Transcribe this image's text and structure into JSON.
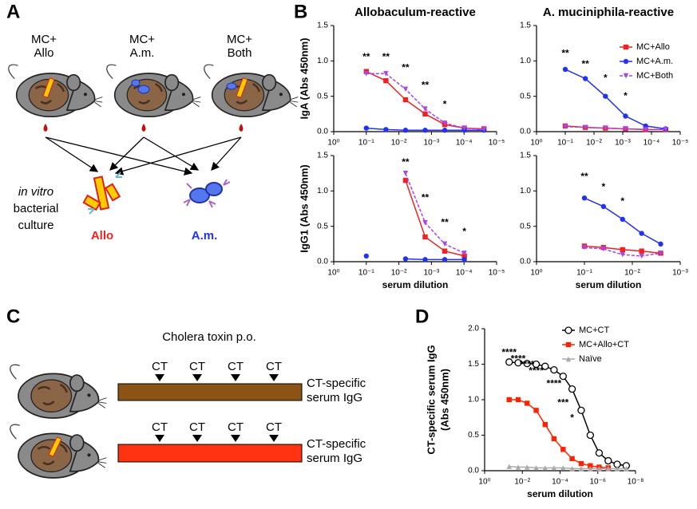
{
  "figure": {
    "A": {
      "label": "A",
      "groups": [
        {
          "line1": "MC+",
          "line2": "Allo"
        },
        {
          "line1": "MC+",
          "line2": "A.m."
        },
        {
          "line1": "MC+",
          "line2": "Both"
        }
      ],
      "culture": [
        "in vitro",
        "bacterial",
        "culture"
      ],
      "targets": [
        "Allo",
        "A.m."
      ]
    },
    "B": {
      "label": "B"
    },
    "C": {
      "label": "C",
      "title": "Cholera toxin p.o.",
      "rows": [
        {
          "doses": [
            "CT",
            "CT",
            "CT",
            "CT"
          ],
          "readout": [
            "CT-specific",
            "serum IgG"
          ]
        },
        {
          "doses": [
            "CT",
            "CT",
            "CT",
            "CT"
          ],
          "readout": [
            "CT-specific",
            "serum IgG"
          ]
        }
      ]
    },
    "D": {
      "label": "D"
    }
  },
  "chart_data": [
    {
      "type": "line",
      "title": "Allobaculum-reactive",
      "ylabel": "IgA (Abs 450nm)",
      "log_x": true,
      "xlim": [
        1,
        1e-05
      ],
      "ylim": [
        0,
        1.5
      ],
      "xticks": [
        {
          "value": 1,
          "label": "10⁰"
        },
        {
          "value": 0.1,
          "label": "10⁻¹"
        },
        {
          "value": 0.01,
          "label": "10⁻²"
        },
        {
          "value": 0.001,
          "label": "10⁻³"
        },
        {
          "value": 0.0001,
          "label": "10⁻⁴"
        },
        {
          "value": 1e-05,
          "label": "10⁻⁵"
        }
      ],
      "yticks": [
        {
          "value": 0,
          "label": "0.0"
        },
        0.5,
        {
          "value": 1,
          "label": "1.0"
        },
        1.5
      ],
      "x": [
        0.1,
        0.025,
        0.00625,
        0.00156,
        0.00039,
        9.77e-05,
        2.44e-05
      ],
      "series": [
        {
          "name": "MC+Allo",
          "color": "#ee2222",
          "marker": "square",
          "values": [
            0.85,
            0.72,
            0.45,
            0.25,
            0.1,
            0.05,
            0.04
          ]
        },
        {
          "name": "MC+A.m.",
          "color": "#2233ee",
          "marker": "circle",
          "values": [
            0.05,
            0.03,
            0.02,
            0.02,
            0.02,
            0.02,
            0.02
          ]
        },
        {
          "name": "MC+Both",
          "color": "#aa44ee",
          "marker": "triangle-down",
          "dash": true,
          "values": [
            0.82,
            0.82,
            0.6,
            0.32,
            0.12,
            0.05,
            0.03
          ]
        }
      ],
      "annotations": [
        {
          "x": 0.1,
          "y": 1.05,
          "text": "**"
        },
        {
          "x": 0.025,
          "y": 1.05,
          "text": "**"
        },
        {
          "x": 0.00625,
          "y": 0.9,
          "text": "**"
        },
        {
          "x": 0.00156,
          "y": 0.65,
          "text": "**"
        },
        {
          "x": 0.00039,
          "y": 0.38,
          "text": "*"
        }
      ]
    },
    {
      "type": "line",
      "title": "A. muciniphila-reactive",
      "log_x": true,
      "legend": "upper right",
      "xlim": [
        1,
        1e-05
      ],
      "ylim": [
        0,
        1.5
      ],
      "xticks": [
        {
          "value": 1,
          "label": "10⁰"
        },
        {
          "value": 0.1,
          "label": "10⁻¹"
        },
        {
          "value": 0.01,
          "label": "10⁻²"
        },
        {
          "value": 0.001,
          "label": "10⁻³"
        },
        {
          "value": 0.0001,
          "label": "10⁻⁴"
        },
        {
          "value": 1e-05,
          "label": "10⁻⁵"
        }
      ],
      "yticks": [
        {
          "value": 0,
          "label": "0.0"
        },
        0.5,
        {
          "value": 1,
          "label": "1.0"
        },
        1.5
      ],
      "x": [
        0.1,
        0.02,
        0.004,
        0.0008,
        0.00016,
        3.2e-05
      ],
      "series": [
        {
          "name": "MC+Allo",
          "color": "#ee2222",
          "marker": "square",
          "values": [
            0.08,
            0.06,
            0.05,
            0.04,
            0.03,
            0.03
          ]
        },
        {
          "name": "MC+A.m.",
          "color": "#2233ee",
          "marker": "circle",
          "values": [
            0.88,
            0.75,
            0.5,
            0.22,
            0.08,
            0.04
          ]
        },
        {
          "name": "MC+Both",
          "color": "#aa44ee",
          "marker": "triangle-down",
          "dash": true,
          "values": [
            0.07,
            0.06,
            0.05,
            0.04,
            0.03,
            0.03
          ]
        }
      ],
      "annotations": [
        {
          "x": 0.1,
          "y": 1.1,
          "text": "**"
        },
        {
          "x": 0.02,
          "y": 0.95,
          "text": "**"
        },
        {
          "x": 0.004,
          "y": 0.75,
          "text": "*"
        },
        {
          "x": 0.0008,
          "y": 0.5,
          "text": "*"
        }
      ]
    },
    {
      "type": "line",
      "ylabel": "IgG1 (Abs 450nm)",
      "xlabel": "serum dilution",
      "log_x": true,
      "xlim": [
        1,
        1e-05
      ],
      "ylim": [
        0,
        1.5
      ],
      "xticks": [
        {
          "value": 1,
          "label": "10⁰"
        },
        {
          "value": 0.1,
          "label": "10⁻¹"
        },
        {
          "value": 0.01,
          "label": "10⁻²"
        },
        {
          "value": 0.001,
          "label": "10⁻³"
        },
        {
          "value": 0.0001,
          "label": "10⁻⁴"
        },
        {
          "value": 1e-05,
          "label": "10⁻⁵"
        }
      ],
      "yticks": [
        {
          "value": 0,
          "label": "0.0"
        },
        0.5,
        {
          "value": 1,
          "label": "1.0"
        },
        1.5
      ],
      "x": [
        0.1,
        0.025,
        0.00625,
        0.00156,
        0.00039,
        9.77e-05
      ],
      "series": [
        {
          "name": "MC+Allo",
          "color": "#ee2222",
          "marker": "square",
          "values": [
            null,
            null,
            1.15,
            0.35,
            0.15,
            0.08
          ]
        },
        {
          "name": "MC+A.m.",
          "color": "#2233ee",
          "marker": "circle",
          "values": [
            0.08,
            null,
            0.04,
            0.03,
            0.03,
            0.03
          ]
        },
        {
          "name": "MC+Both",
          "color": "#aa44ee",
          "marker": "triangle-down",
          "dash": true,
          "values": [
            null,
            null,
            1.25,
            0.55,
            0.25,
            0.12
          ]
        }
      ],
      "annotations": [
        {
          "x": 0.00625,
          "y": 1.4,
          "text": "**"
        },
        {
          "x": 0.00156,
          "y": 0.9,
          "text": "**"
        },
        {
          "x": 0.00039,
          "y": 0.55,
          "text": "**"
        },
        {
          "x": 9.77e-05,
          "y": 0.42,
          "text": "*"
        }
      ]
    },
    {
      "type": "line",
      "xlabel": "serum dilution",
      "log_x": true,
      "xlim": [
        1,
        0.001
      ],
      "ylim": [
        0,
        1.5
      ],
      "xticks": [
        {
          "value": 1,
          "label": "10⁰"
        },
        {
          "value": 0.1,
          "label": "10⁻¹"
        },
        {
          "value": 0.01,
          "label": "10⁻²"
        },
        {
          "value": 0.001,
          "label": "10⁻³"
        }
      ],
      "yticks": [
        {
          "value": 0,
          "label": "0.0"
        },
        0.5,
        {
          "value": 1,
          "label": "1.0"
        },
        1.5
      ],
      "x": [
        0.1,
        0.04,
        0.016,
        0.0064,
        0.00256
      ],
      "series": [
        {
          "name": "MC+Allo",
          "color": "#ee2222",
          "marker": "square",
          "values": [
            0.22,
            0.2,
            0.17,
            0.15,
            0.12
          ]
        },
        {
          "name": "MC+A.m.",
          "color": "#2233ee",
          "marker": "circle",
          "values": [
            0.9,
            0.78,
            0.6,
            0.4,
            0.25
          ]
        },
        {
          "name": "MC+Both",
          "color": "#aa44ee",
          "marker": "triangle-down",
          "dash": true,
          "values": [
            0.2,
            0.18,
            0.1,
            0.08,
            0.12
          ]
        }
      ],
      "annotations": [
        {
          "x": 0.1,
          "y": 1.2,
          "text": "**"
        },
        {
          "x": 0.04,
          "y": 1.05,
          "text": "*"
        },
        {
          "x": 0.016,
          "y": 0.85,
          "text": "*"
        }
      ]
    },
    {
      "type": "line",
      "ylabel": [
        "CT-specific serum IgG",
        "(Abs 450nm)"
      ],
      "xlabel": "serum dilution",
      "log_x": true,
      "legend": "upper right",
      "xlim": [
        1,
        1e-08
      ],
      "ylim": [
        0,
        2
      ],
      "xticks": [
        {
          "value": 1,
          "label": "10⁰"
        },
        {
          "value": 0.01,
          "label": "10⁻²"
        },
        {
          "value": 0.0001,
          "label": "10⁻⁴"
        },
        {
          "value": 1e-06,
          "label": "10⁻⁶"
        },
        {
          "value": 1e-08,
          "label": "10⁻⁸"
        }
      ],
      "yticks": [
        {
          "value": 0,
          "label": "0.0"
        },
        0.5,
        {
          "value": 1,
          "label": "1.0"
        },
        1.5,
        {
          "value": 2,
          "label": "2.0"
        }
      ],
      "x": [
        0.05,
        0.0167,
        0.0056,
        0.00185,
        0.00062,
        0.00021,
        6.9e-05,
        2.3e-05,
        7.6e-06,
        2.5e-06,
        8.5e-07,
        2.8e-07,
        9.4e-08,
        3.1e-08
      ],
      "series": [
        {
          "name": "MC+CT",
          "color": "#000000",
          "marker": "circle-open",
          "values": [
            1.53,
            1.52,
            1.51,
            1.5,
            1.47,
            1.42,
            1.33,
            1.15,
            0.85,
            0.5,
            0.25,
            0.14,
            0.09,
            0.07
          ]
        },
        {
          "name": "MC+Allo+CT",
          "color": "#ff2200",
          "marker": "square",
          "values": [
            1.0,
            1.0,
            0.95,
            0.85,
            0.65,
            0.45,
            0.3,
            0.17,
            0.1,
            0.07,
            0.05,
            0.04,
            null,
            null
          ]
        },
        {
          "name": "Naïve",
          "color": "#aaaaaa",
          "marker": "triangle",
          "values": [
            0.06,
            0.05,
            0.05,
            0.04,
            0.04,
            0.04,
            0.04,
            0.03,
            0.03,
            0.03,
            0.03,
            0.03,
            0.03,
            0.03
          ]
        }
      ],
      "annotations": [
        {
          "x": 0.05,
          "y": 1.66,
          "text": "****"
        },
        {
          "x": 0.0167,
          "y": 1.57,
          "text": "****"
        },
        {
          "x": 0.0056,
          "y": 1.49,
          "text": "****"
        },
        {
          "x": 0.00185,
          "y": 1.4,
          "text": "****"
        },
        {
          "x": 0.00021,
          "y": 1.22,
          "text": "****"
        },
        {
          "x": 6.9e-05,
          "y": 0.95,
          "text": "***"
        },
        {
          "x": 2.3e-05,
          "y": 0.74,
          "text": "*"
        }
      ]
    }
  ]
}
